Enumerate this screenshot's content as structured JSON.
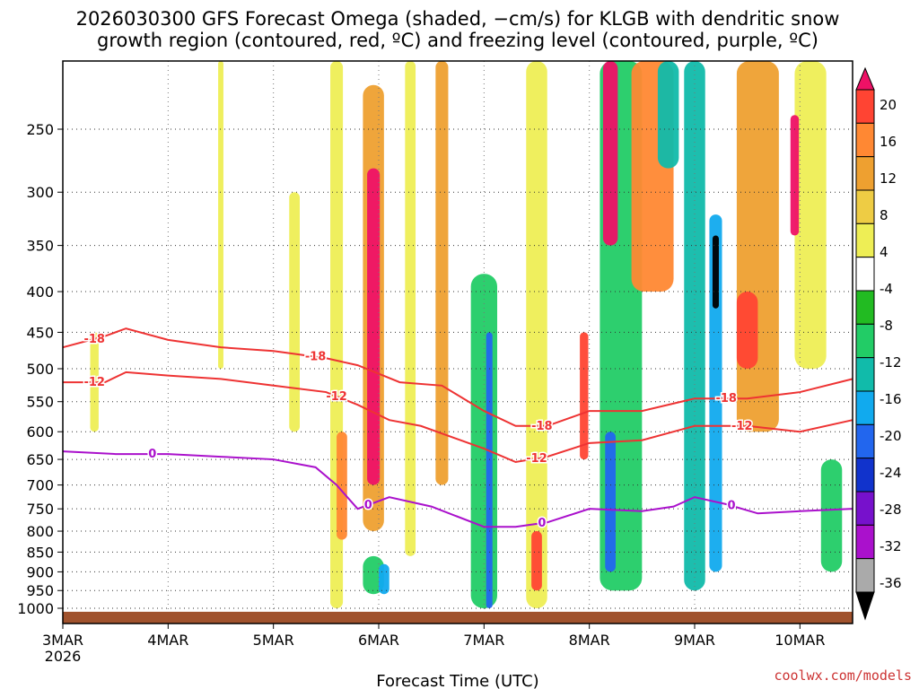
{
  "chart_data": {
    "type": "heatmap",
    "title_line1": "2026030300 GFS Forecast Omega (shaded, −cm/s) for KLGB with dendritic snow",
    "title_line2": "growth region (contoured, red, ºC) and freezing level (contoured, purple, ºC)",
    "xlabel": "Forecast Time (UTC)",
    "credit": "coolwx.com/models",
    "x_ticks": [
      {
        "day": 3,
        "label": "3MAR",
        "sub": "2026"
      },
      {
        "day": 4,
        "label": "4MAR",
        "sub": ""
      },
      {
        "day": 5,
        "label": "5MAR",
        "sub": ""
      },
      {
        "day": 6,
        "label": "6MAR",
        "sub": ""
      },
      {
        "day": 7,
        "label": "7MAR",
        "sub": ""
      },
      {
        "day": 8,
        "label": "8MAR",
        "sub": ""
      },
      {
        "day": 9,
        "label": "9MAR",
        "sub": ""
      },
      {
        "day": 10,
        "label": "10MAR",
        "sub": ""
      }
    ],
    "x_range_days": [
      3.0,
      10.5
    ],
    "y_ticks": [
      250,
      300,
      350,
      400,
      450,
      500,
      550,
      600,
      650,
      700,
      750,
      800,
      850,
      900,
      950,
      1000
    ],
    "y_range_hpa": [
      200,
      1000
    ],
    "surface_hpa": 1005,
    "colorbar": {
      "labels": [
        "20",
        "16",
        "12",
        "8",
        "4",
        "-4",
        "-8",
        "-12",
        "-16",
        "-20",
        "-24",
        "-28",
        "-32",
        "-36"
      ],
      "colors": [
        "#ee1166",
        "#ff4433",
        "#ff8833",
        "#eea030",
        "#eecc44",
        "#eeee55",
        "#ffffff",
        "#22bb22",
        "#22cc66",
        "#11bbaa",
        "#11aaee",
        "#2266ee",
        "#1133cc",
        "#7711cc",
        "#aa11cc",
        "#aaaaaa",
        "#000000"
      ]
    },
    "contours": [
      {
        "label": "-18",
        "color": "#ee3333",
        "x": [
          3.0,
          3.4,
          3.6,
          4.0,
          4.5,
          5.0,
          5.5,
          5.8,
          6.2,
          6.6,
          7.0,
          7.3,
          7.6,
          8.0,
          8.5,
          9.0,
          9.5,
          10.0,
          10.5
        ],
        "p": [
          470,
          455,
          445,
          460,
          470,
          475,
          485,
          495,
          520,
          525,
          565,
          590,
          590,
          565,
          565,
          545,
          545,
          535,
          515
        ],
        "labels_at": [
          3.3,
          5.4,
          7.55,
          9.3
        ]
      },
      {
        "label": "-12",
        "color": "#ee3333",
        "x": [
          3.0,
          3.4,
          3.6,
          4.0,
          4.5,
          5.0,
          5.5,
          5.8,
          6.1,
          6.4,
          7.0,
          7.3,
          7.6,
          8.0,
          8.5,
          9.0,
          9.5,
          10.0,
          10.5
        ],
        "p": [
          520,
          520,
          505,
          510,
          515,
          525,
          535,
          555,
          580,
          590,
          630,
          655,
          645,
          620,
          615,
          590,
          590,
          600,
          580
        ],
        "labels_at": [
          3.3,
          5.6,
          7.5,
          9.45
        ]
      },
      {
        "label": "0",
        "color": "#aa11cc",
        "x": [
          3.0,
          3.5,
          4.0,
          4.5,
          5.0,
          5.4,
          5.6,
          5.8,
          6.1,
          6.5,
          7.0,
          7.3,
          7.6,
          8.0,
          8.5,
          8.8,
          9.0,
          9.3,
          9.6,
          10.0,
          10.5
        ],
        "p": [
          635,
          640,
          640,
          645,
          650,
          665,
          700,
          750,
          725,
          745,
          790,
          790,
          780,
          750,
          755,
          745,
          725,
          740,
          760,
          755,
          750
        ],
        "labels_at": [
          3.85,
          5.9,
          7.55,
          9.35
        ]
      }
    ],
    "omega_cells": [
      {
        "x": 5.6,
        "p0": 200,
        "p1": 1000,
        "w": 0.12,
        "v": 6
      },
      {
        "x": 5.65,
        "p0": 600,
        "p1": 820,
        "w": 0.1,
        "v": 14
      },
      {
        "x": 5.95,
        "p0": 280,
        "p1": 700,
        "w": 0.12,
        "v": 20
      },
      {
        "x": 5.95,
        "p0": 220,
        "p1": 800,
        "w": 0.2,
        "v": 10
      },
      {
        "x": 6.05,
        "p0": 880,
        "p1": 960,
        "w": 0.1,
        "v": -16
      },
      {
        "x": 5.95,
        "p0": 860,
        "p1": 960,
        "w": 0.2,
        "v": -8
      },
      {
        "x": 6.3,
        "p0": 200,
        "p1": 860,
        "w": 0.1,
        "v": 6
      },
      {
        "x": 6.6,
        "p0": 200,
        "p1": 700,
        "w": 0.12,
        "v": 8
      },
      {
        "x": 7.05,
        "p0": 450,
        "p1": 1000,
        "w": 0.06,
        "v": -20
      },
      {
        "x": 7.0,
        "p0": 380,
        "p1": 1000,
        "w": 0.25,
        "v": -8
      },
      {
        "x": 7.5,
        "p0": 800,
        "p1": 950,
        "w": 0.1,
        "v": 16
      },
      {
        "x": 7.5,
        "p0": 200,
        "p1": 1000,
        "w": 0.2,
        "v": 6
      },
      {
        "x": 7.95,
        "p0": 450,
        "p1": 650,
        "w": 0.08,
        "v": 16
      },
      {
        "x": 8.2,
        "p0": 200,
        "p1": 350,
        "w": 0.14,
        "v": 20
      },
      {
        "x": 8.2,
        "p0": 600,
        "p1": 900,
        "w": 0.1,
        "v": -20
      },
      {
        "x": 8.3,
        "p0": 200,
        "p1": 950,
        "w": 0.4,
        "v": -8
      },
      {
        "x": 8.6,
        "p0": 200,
        "p1": 400,
        "w": 0.4,
        "v": 12
      },
      {
        "x": 8.75,
        "p0": 200,
        "p1": 280,
        "w": 0.2,
        "v": -14
      },
      {
        "x": 9.0,
        "p0": 200,
        "p1": 950,
        "w": 0.2,
        "v": -12
      },
      {
        "x": 9.2,
        "p0": 340,
        "p1": 420,
        "w": 0.06,
        "v": -36
      },
      {
        "x": 9.2,
        "p0": 320,
        "p1": 900,
        "w": 0.12,
        "v": -16
      },
      {
        "x": 9.5,
        "p0": 400,
        "p1": 500,
        "w": 0.2,
        "v": 16
      },
      {
        "x": 9.6,
        "p0": 200,
        "p1": 600,
        "w": 0.4,
        "v": 8
      },
      {
        "x": 9.95,
        "p0": 240,
        "p1": 340,
        "w": 0.08,
        "v": 20
      },
      {
        "x": 10.1,
        "p0": 200,
        "p1": 500,
        "w": 0.3,
        "v": 6
      },
      {
        "x": 10.3,
        "p0": 650,
        "p1": 900,
        "w": 0.2,
        "v": -8
      },
      {
        "x": 5.2,
        "p0": 300,
        "p1": 600,
        "w": 0.1,
        "v": 6
      },
      {
        "x": 3.3,
        "p0": 450,
        "p1": 600,
        "w": 0.08,
        "v": 5
      },
      {
        "x": 4.5,
        "p0": 200,
        "p1": 500,
        "w": 0.05,
        "v": 5
      }
    ]
  }
}
